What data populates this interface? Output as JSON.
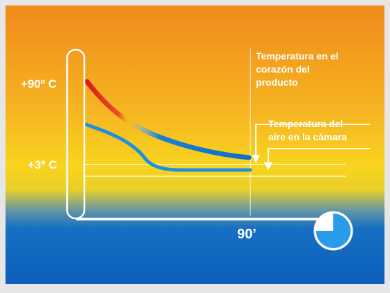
{
  "labels": {
    "top_temp": "+90º C",
    "low_temp": "+3º C",
    "time": "90’",
    "core_temp": "Temperatura en el\ncorazón del\nproducto",
    "air_temp": "Temperatura del\naire en la cámara"
  },
  "colors": {
    "panel_top": "#f08a1a",
    "panel_mid": "#f7cf1d",
    "panel_bottom": "#0c63bf",
    "core_curve": "#e21d1d",
    "core_curve_cooled": "#0f74cf",
    "air_curve": "#1e90e0",
    "axes": "#ffffff",
    "clock_fill": "#2a9be8"
  },
  "icons": [
    "timer-clock-icon",
    "arrow-down-icon"
  ]
}
